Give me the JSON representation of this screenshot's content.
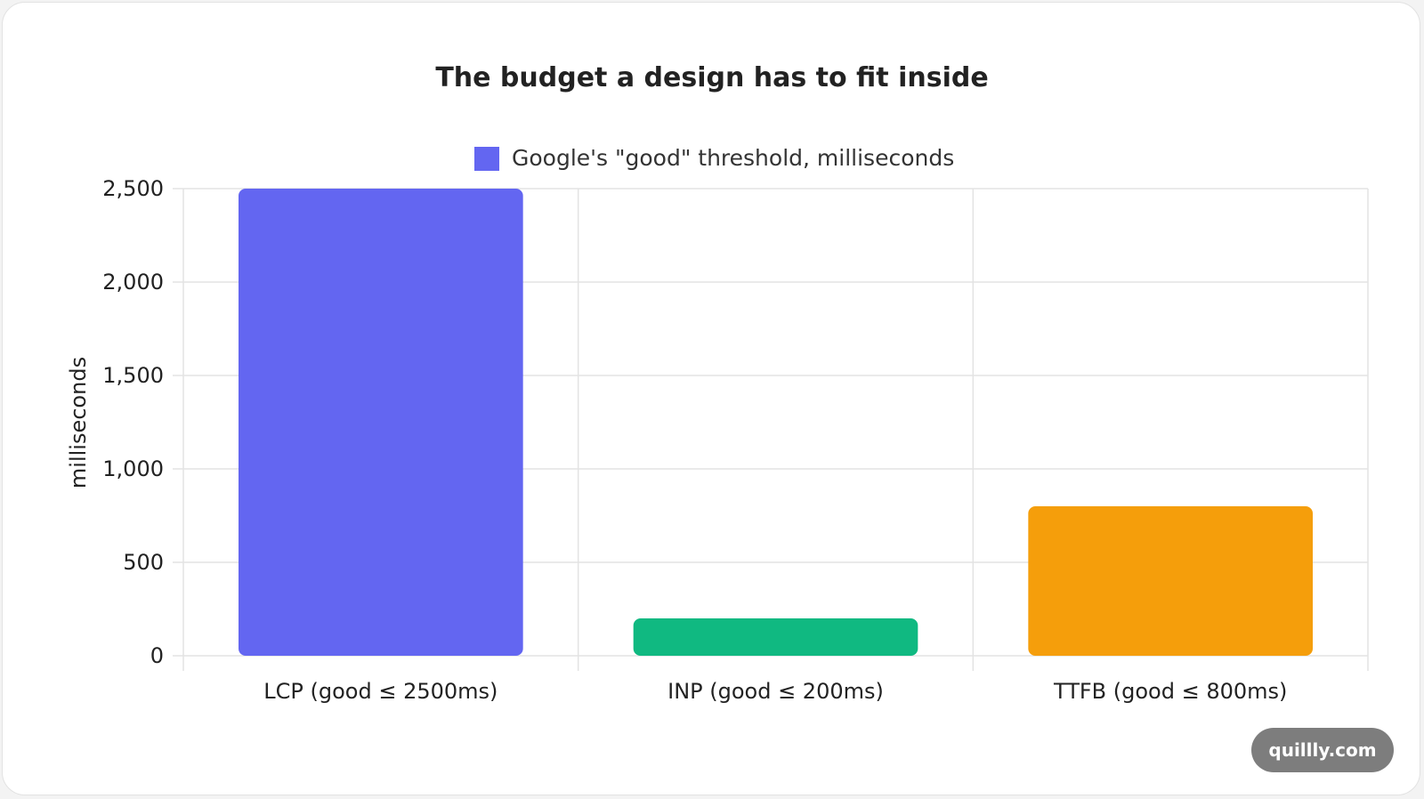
{
  "chart_data": {
    "type": "bar",
    "title": "The budget a design has to fit inside",
    "ylabel": "milliseconds",
    "xlabel": "",
    "categories": [
      "LCP (good ≤ 2500ms)",
      "INP (good ≤ 200ms)",
      "TTFB (good ≤ 800ms)"
    ],
    "series": [
      {
        "name": "Google's \"good\" threshold, milliseconds",
        "values": [
          2500,
          200,
          800
        ]
      }
    ],
    "bar_colors": [
      "#6366f1",
      "#10b981",
      "#f59e0b"
    ],
    "legend_color": "#6366f1",
    "ylim": [
      0,
      2500
    ],
    "yticks": [
      0,
      500,
      1000,
      1500,
      2000,
      2500
    ],
    "ytick_labels": [
      "0",
      "500",
      "1,000",
      "1,500",
      "2,000",
      "2,500"
    ],
    "grid": true,
    "legend_position": "top-center"
  },
  "watermark": {
    "text": "quillly.com"
  }
}
